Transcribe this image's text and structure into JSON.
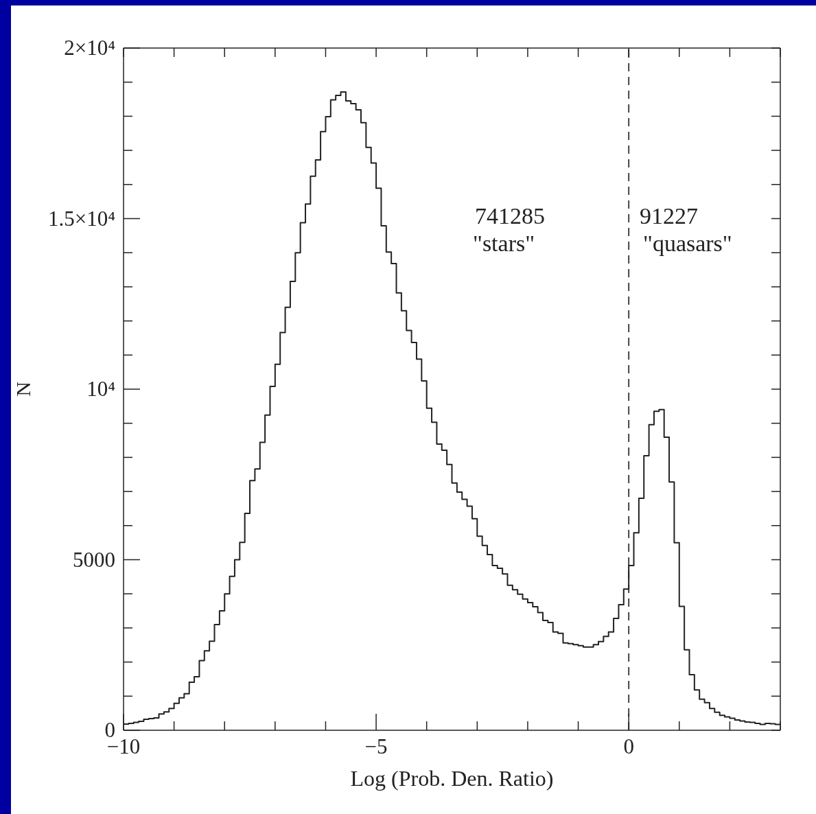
{
  "chart_data": {
    "type": "histogram",
    "xlabel": "Log (Prob. Den. Ratio)",
    "ylabel": "N",
    "color": "#222222",
    "bins": [
      -10,
      -9.9,
      -9.8,
      -9.7,
      -9.6,
      -9.5,
      -9.4,
      -9.3,
      -9.2,
      -9.1,
      -9,
      -8.9,
      -8.8,
      -8.7,
      -8.6,
      -8.5,
      -8.4,
      -8.3,
      -8.2,
      -8.1,
      -8,
      -7.9,
      -7.8,
      -7.7,
      -7.6,
      -7.5,
      -7.4,
      -7.3,
      -7.2,
      -7.1,
      -7,
      -6.9,
      -6.8,
      -6.7,
      -6.6,
      -6.5,
      -6.4,
      -6.3,
      -6.2,
      -6.1,
      -6,
      -5.9,
      -5.8,
      -5.7,
      -5.6,
      -5.5,
      -5.4,
      -5.3,
      -5.2,
      -5.1,
      -5,
      -4.9,
      -4.8,
      -4.7,
      -4.6,
      -4.5,
      -4.4,
      -4.3,
      -4.2,
      -4.1,
      -4,
      -3.9,
      -3.8,
      -3.7,
      -3.6,
      -3.5,
      -3.4,
      -3.3,
      -3.2,
      -3.1,
      -3,
      -2.9,
      -2.8,
      -2.7,
      -2.6,
      -2.5,
      -2.4,
      -2.3,
      -2.2,
      -2.1,
      -2,
      -1.9,
      -1.8,
      -1.7,
      -1.6,
      -1.5,
      -1.4,
      -1.3,
      -1.2,
      -1.1,
      -1,
      -0.9,
      -0.8,
      -0.7,
      -0.6,
      -0.5,
      -0.4,
      -0.3,
      -0.2,
      -0.1,
      0,
      0.1,
      0.2,
      0.3,
      0.4,
      0.5,
      0.6,
      0.7,
      0.8,
      0.9,
      1,
      1.1,
      1.2,
      1.3,
      1.4,
      1.5,
      1.6,
      1.7,
      1.8,
      1.9,
      2,
      2.1,
      2.2,
      2.3,
      2.4,
      2.5,
      2.6,
      2.7,
      2.8,
      2.9,
      3
    ],
    "values": [
      180,
      200,
      230,
      260,
      320,
      340,
      360,
      480,
      540,
      640,
      790,
      950,
      1070,
      1410,
      1570,
      2040,
      2330,
      2610,
      3100,
      3500,
      4000,
      4510,
      5000,
      5510,
      6360,
      7320,
      7660,
      8440,
      9240,
      10080,
      10730,
      11660,
      12400,
      13160,
      14000,
      14880,
      15430,
      16240,
      16720,
      17550,
      17990,
      18480,
      18610,
      18710,
      18450,
      18370,
      18190,
      17810,
      17090,
      16630,
      15890,
      14790,
      14020,
      13680,
      12820,
      12300,
      11720,
      11370,
      10880,
      10240,
      9440,
      9030,
      8390,
      8210,
      7790,
      7250,
      6980,
      6770,
      6570,
      6200,
      5690,
      5420,
      5150,
      4830,
      4750,
      4580,
      4250,
      4120,
      3990,
      3850,
      3740,
      3620,
      3450,
      3220,
      3160,
      2880,
      2840,
      2560,
      2540,
      2510,
      2480,
      2440,
      2440,
      2510,
      2600,
      2750,
      2880,
      3280,
      3680,
      4140,
      4830,
      5790,
      6800,
      8050,
      8960,
      9350,
      9400,
      8590,
      7280,
      5500,
      3630,
      2360,
      1630,
      1180,
      910,
      810,
      640,
      530,
      440,
      390,
      350,
      300,
      270,
      240,
      230,
      200,
      170,
      200,
      190,
      170
    ],
    "xlim": [
      -10,
      3
    ],
    "xticks": [
      -10,
      {
        "value": -9,
        "label": null
      },
      {
        "value": -8,
        "label": null
      },
      {
        "value": -7,
        "label": null
      },
      {
        "value": -6,
        "label": null
      },
      {
        "value": -5,
        "label": "−5"
      },
      {
        "value": -4,
        "label": null
      },
      {
        "value": -3,
        "label": null
      },
      {
        "value": -2,
        "label": null
      },
      {
        "value": -1,
        "label": null
      },
      0,
      {
        "value": 1,
        "label": null
      },
      {
        "value": 2,
        "label": null
      },
      {
        "value": 3,
        "label": null
      }
    ],
    "ylim": [
      0,
      20000
    ],
    "yticks": [
      0,
      {
        "value": 1000,
        "label": null
      },
      {
        "value": 2000,
        "label": null
      },
      {
        "value": 3000,
        "label": null
      },
      {
        "value": 4000,
        "label": null
      },
      5000,
      {
        "value": 6000,
        "label": null
      },
      {
        "value": 7000,
        "label": null
      },
      {
        "value": 8000,
        "label": null
      },
      {
        "value": 9000,
        "label": null
      },
      {
        "value": 10000,
        "label": "10⁴"
      },
      {
        "value": 11000,
        "label": null
      },
      {
        "value": 12000,
        "label": null
      },
      {
        "value": 13000,
        "label": null
      },
      {
        "value": 14000,
        "label": null
      },
      {
        "value": 15000,
        "label": "1.5×10⁴"
      },
      {
        "value": 16000,
        "label": null
      },
      {
        "value": 17000,
        "label": null
      },
      {
        "value": 18000,
        "label": null
      },
      {
        "value": 19000,
        "label": null
      },
      {
        "value": 20000,
        "label": "2×10⁴"
      }
    ],
    "ref_lines": [
      {
        "axis": "x",
        "value": 0,
        "label": null,
        "line_style": "dashed",
        "color": "#444444"
      }
    ],
    "annotations": [
      "741285",
      "\"stars\"",
      "91227",
      "\"quasars\""
    ]
  }
}
